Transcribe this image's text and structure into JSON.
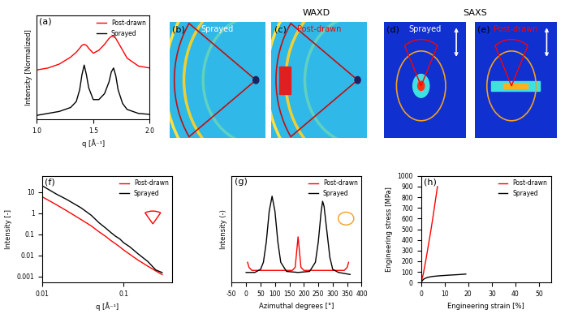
{
  "chart_data": [
    {
      "type": "line",
      "panel": "(a)",
      "xlabel": "q [Å⁻¹]",
      "ylabel": "Intensity [Normalized]",
      "xlim": [
        1.0,
        2.0
      ],
      "ylim": [
        0,
        1.05
      ],
      "xticks": [
        {
          "value": 1.0,
          "label": "1.0"
        },
        {
          "value": 1.5,
          "label": "1.5"
        },
        {
          "value": 2.0,
          "label": "2.0"
        }
      ],
      "yticks": [],
      "tick_labels": "x",
      "legend": "upper right",
      "series": [
        {
          "name": "Post-drawn",
          "color": "#ff0000",
          "x": [
            1.0,
            1.1,
            1.2,
            1.3,
            1.35,
            1.38,
            1.4,
            1.42,
            1.44,
            1.46,
            1.5,
            1.55,
            1.6,
            1.64,
            1.66,
            1.68,
            1.7,
            1.72,
            1.76,
            1.8,
            1.9,
            2.0
          ],
          "values": [
            0.5,
            0.52,
            0.56,
            0.63,
            0.68,
            0.72,
            0.75,
            0.76,
            0.75,
            0.72,
            0.67,
            0.7,
            0.76,
            0.82,
            0.84,
            0.84,
            0.82,
            0.78,
            0.7,
            0.62,
            0.54,
            0.52
          ]
        },
        {
          "name": "Sprayed",
          "color": "#000000",
          "x": [
            1.0,
            1.1,
            1.2,
            1.3,
            1.35,
            1.38,
            1.4,
            1.42,
            1.44,
            1.46,
            1.5,
            1.55,
            1.6,
            1.64,
            1.66,
            1.68,
            1.7,
            1.72,
            1.76,
            1.8,
            1.9,
            2.0
          ],
          "values": [
            0.04,
            0.06,
            0.08,
            0.12,
            0.18,
            0.3,
            0.45,
            0.55,
            0.45,
            0.32,
            0.2,
            0.2,
            0.26,
            0.38,
            0.48,
            0.52,
            0.44,
            0.3,
            0.16,
            0.1,
            0.06,
            0.05
          ]
        }
      ]
    },
    {
      "type": "line",
      "panel": "(f)",
      "xlabel": "q [Å⁻¹]",
      "ylabel": "Intensity [-]",
      "log": true,
      "xlim": [
        0.01,
        0.4
      ],
      "ylim": [
        0.0005,
        60
      ],
      "xticks": [
        0.01,
        0.1
      ],
      "yticks": [
        0.001,
        0.01,
        0.1,
        1,
        10
      ],
      "legend": "upper right",
      "series": [
        {
          "name": "Post-drawn",
          "color": "#ff0000",
          "x": [
            0.01,
            0.015,
            0.02,
            0.03,
            0.04,
            0.05,
            0.06,
            0.07,
            0.08,
            0.09,
            0.1,
            0.12,
            0.15,
            0.2,
            0.25,
            0.3
          ],
          "values": [
            6,
            2.5,
            1.3,
            0.5,
            0.25,
            0.13,
            0.08,
            0.05,
            0.035,
            0.025,
            0.018,
            0.011,
            0.006,
            0.003,
            0.0018,
            0.0012
          ]
        },
        {
          "name": "Sprayed",
          "color": "#000000",
          "x": [
            0.01,
            0.015,
            0.02,
            0.03,
            0.04,
            0.05,
            0.06,
            0.07,
            0.08,
            0.09,
            0.1,
            0.12,
            0.15,
            0.2,
            0.25,
            0.3
          ],
          "values": [
            20,
            8,
            4.5,
            1.8,
            0.8,
            0.35,
            0.2,
            0.12,
            0.08,
            0.06,
            0.04,
            0.025,
            0.012,
            0.005,
            0.002,
            0.0015
          ]
        }
      ]
    },
    {
      "type": "line",
      "panel": "(g)",
      "xlabel": "Azimuthal degrees [°]",
      "ylabel": "Intensity (-)",
      "xlim": [
        -50,
        400
      ],
      "ylim": [
        0,
        1.05
      ],
      "xticks": [
        -50,
        0,
        50,
        100,
        150,
        200,
        250,
        300,
        350,
        400
      ],
      "yticks": [],
      "tick_labels": "x",
      "legend": "upper right",
      "series": [
        {
          "name": "Post-drawn",
          "color": "#ff0000",
          "x": [
            5,
            10,
            20,
            60,
            120,
            160,
            170,
            175,
            180,
            185,
            190,
            200,
            250,
            300,
            340,
            350,
            355
          ],
          "values": [
            0.2,
            0.15,
            0.12,
            0.12,
            0.12,
            0.12,
            0.15,
            0.3,
            0.45,
            0.3,
            0.15,
            0.12,
            0.12,
            0.12,
            0.12,
            0.15,
            0.2
          ]
        },
        {
          "name": "Sprayed",
          "color": "#000000",
          "x": [
            0,
            30,
            50,
            60,
            70,
            80,
            90,
            100,
            110,
            120,
            140,
            180,
            220,
            240,
            250,
            260,
            265,
            270,
            280,
            290,
            300,
            320,
            360
          ],
          "values": [
            0.1,
            0.1,
            0.13,
            0.2,
            0.4,
            0.7,
            0.85,
            0.7,
            0.4,
            0.2,
            0.11,
            0.1,
            0.11,
            0.2,
            0.4,
            0.7,
            0.8,
            0.75,
            0.5,
            0.25,
            0.13,
            0.1,
            0.08
          ]
        }
      ]
    },
    {
      "type": "line",
      "panel": "(h)",
      "xlabel": "Engineering strain [%]",
      "ylabel": "Engineering stress [MPa]",
      "xlim": [
        0,
        55
      ],
      "ylim": [
        0,
        1000
      ],
      "xticks": [
        0,
        10,
        20,
        30,
        40,
        50
      ],
      "yticks": [
        0,
        100,
        200,
        300,
        400,
        500,
        600,
        700,
        800,
        900,
        1000
      ],
      "legend": "upper right",
      "series": [
        {
          "name": "Post-drawn",
          "color": "#ff0000",
          "x": [
            0,
            1,
            2,
            3,
            4,
            5,
            6,
            7
          ],
          "values": [
            0,
            80,
            200,
            330,
            460,
            600,
            750,
            900
          ]
        },
        {
          "name": "Sprayed",
          "color": "#000000",
          "x": [
            0,
            0.5,
            1,
            2,
            3,
            5,
            8,
            12,
            16,
            19
          ],
          "values": [
            0,
            15,
            30,
            42,
            50,
            58,
            64,
            70,
            75,
            80
          ]
        }
      ]
    }
  ],
  "images": [
    {
      "panel": "(b)",
      "label": "Sprayed",
      "group": "WAXD"
    },
    {
      "panel": "(c)",
      "label": "Post-drawn",
      "group": "WAXD"
    },
    {
      "panel": "(d)",
      "label": "Sprayed",
      "group": "SAXS"
    },
    {
      "panel": "(e)",
      "label": "Post-drawn",
      "group": "SAXS"
    }
  ],
  "headers": [
    "WAXD",
    "SAXS"
  ]
}
